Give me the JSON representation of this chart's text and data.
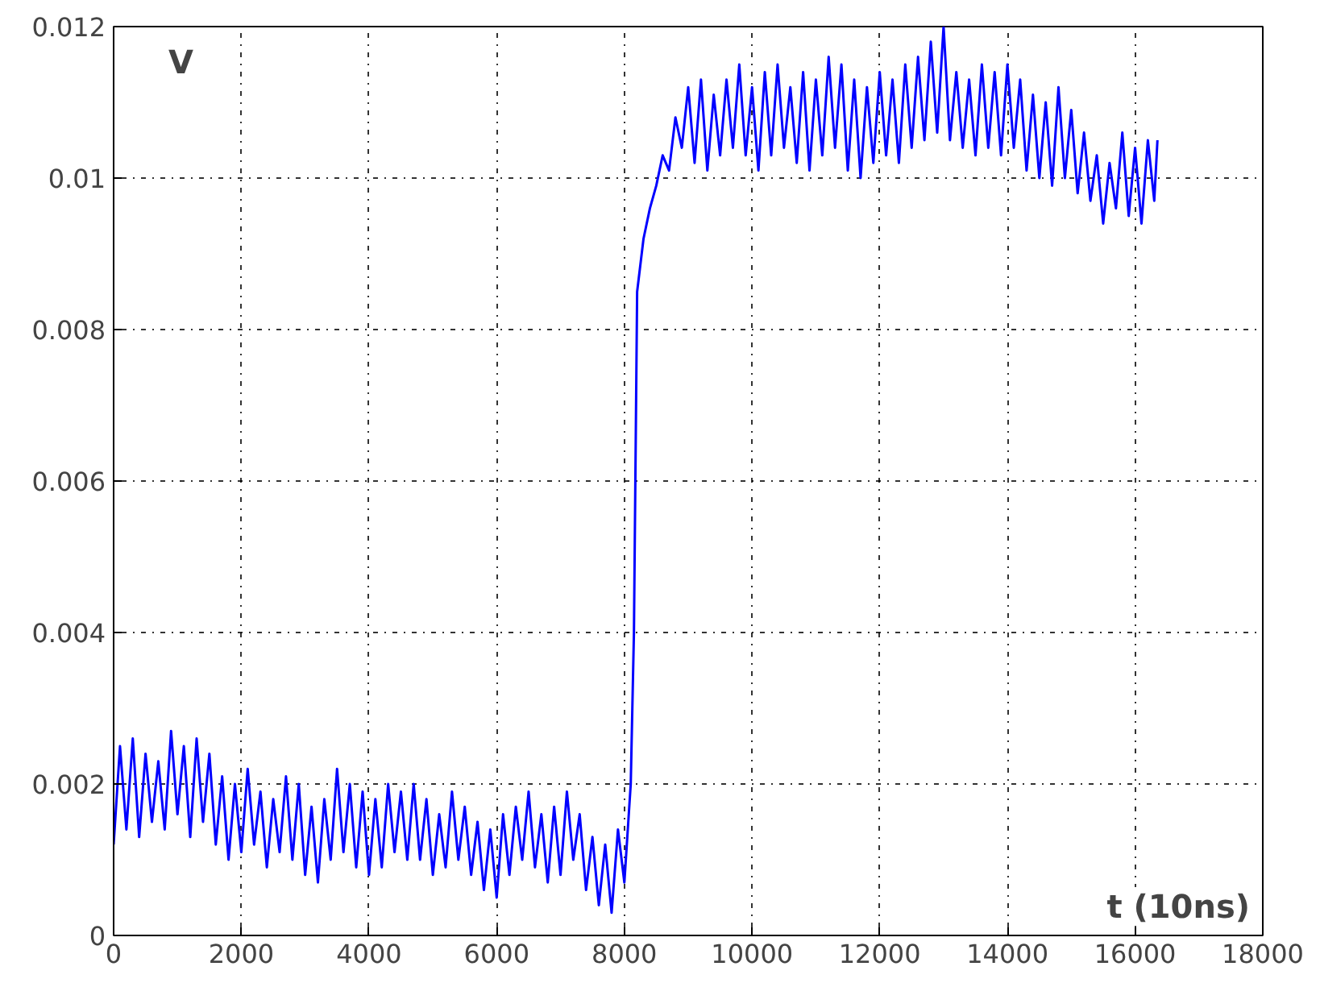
{
  "chart_data": {
    "type": "line",
    "xlabel": "t (10ns)",
    "ylabel": "V",
    "xlim": [
      0,
      18000
    ],
    "ylim": [
      0,
      0.012
    ],
    "xticks": [
      0,
      2000,
      4000,
      6000,
      8000,
      10000,
      12000,
      14000,
      16000,
      18000
    ],
    "yticks": [
      0,
      0.002,
      0.004,
      0.006,
      0.008,
      0.01,
      0.012
    ],
    "grid": true,
    "line_style": "solid",
    "series": [
      {
        "color": "#0000ff",
        "x": [
          0,
          100,
          200,
          300,
          400,
          500,
          600,
          700,
          800,
          900,
          1000,
          1100,
          1200,
          1300,
          1400,
          1500,
          1600,
          1700,
          1800,
          1900,
          2000,
          2100,
          2200,
          2300,
          2400,
          2500,
          2600,
          2700,
          2800,
          2900,
          3000,
          3100,
          3200,
          3300,
          3400,
          3500,
          3600,
          3700,
          3800,
          3900,
          4000,
          4100,
          4200,
          4300,
          4400,
          4500,
          4600,
          4700,
          4800,
          4900,
          5000,
          5100,
          5200,
          5300,
          5400,
          5500,
          5600,
          5700,
          5800,
          5900,
          6000,
          6100,
          6200,
          6300,
          6400,
          6500,
          6600,
          6700,
          6800,
          6900,
          7000,
          7100,
          7200,
          7300,
          7400,
          7500,
          7600,
          7700,
          7800,
          7900,
          8000,
          8100,
          8150,
          8200,
          8300,
          8400,
          8500,
          8600,
          8700,
          8800,
          8900,
          9000,
          9100,
          9200,
          9300,
          9400,
          9500,
          9600,
          9700,
          9800,
          9900,
          10000,
          10100,
          10200,
          10300,
          10400,
          10500,
          10600,
          10700,
          10800,
          10900,
          11000,
          11100,
          11200,
          11300,
          11400,
          11500,
          11600,
          11700,
          11800,
          11900,
          12000,
          12100,
          12200,
          12300,
          12400,
          12500,
          12600,
          12700,
          12800,
          12900,
          13000,
          13100,
          13200,
          13300,
          13400,
          13500,
          13600,
          13700,
          13800,
          13900,
          14000,
          14100,
          14200,
          14300,
          14400,
          14500,
          14600,
          14700,
          14800,
          14900,
          15000,
          15100,
          15200,
          15300,
          15400,
          15500,
          15600,
          15700,
          15800,
          15900,
          16000,
          16100,
          16200,
          16300,
          16350
        ],
        "values": [
          0.0012,
          0.0025,
          0.0014,
          0.0026,
          0.0013,
          0.0024,
          0.0015,
          0.0023,
          0.0014,
          0.0027,
          0.0016,
          0.0025,
          0.0013,
          0.0026,
          0.0015,
          0.0024,
          0.0012,
          0.0021,
          0.001,
          0.002,
          0.0011,
          0.0022,
          0.0012,
          0.0019,
          0.0009,
          0.0018,
          0.0011,
          0.0021,
          0.001,
          0.002,
          0.0008,
          0.0017,
          0.0007,
          0.0018,
          0.001,
          0.0022,
          0.0011,
          0.002,
          0.0009,
          0.0019,
          0.0008,
          0.0018,
          0.0009,
          0.002,
          0.0011,
          0.0019,
          0.001,
          0.002,
          0.001,
          0.0018,
          0.0008,
          0.0016,
          0.0009,
          0.0019,
          0.001,
          0.0017,
          0.0008,
          0.0015,
          0.0006,
          0.0014,
          0.0005,
          0.0016,
          0.0008,
          0.0017,
          0.001,
          0.0019,
          0.0009,
          0.0016,
          0.0007,
          0.0017,
          0.0008,
          0.0019,
          0.001,
          0.0016,
          0.0006,
          0.0013,
          0.0004,
          0.0012,
          0.0003,
          0.0014,
          0.0007,
          0.002,
          0.004,
          0.0085,
          0.0092,
          0.0096,
          0.0099,
          0.0103,
          0.0101,
          0.0108,
          0.0104,
          0.0112,
          0.0102,
          0.0113,
          0.0101,
          0.0111,
          0.0103,
          0.0113,
          0.0104,
          0.0115,
          0.0103,
          0.0112,
          0.0101,
          0.0114,
          0.0103,
          0.0115,
          0.0104,
          0.0112,
          0.0102,
          0.0114,
          0.0101,
          0.0113,
          0.0103,
          0.0116,
          0.0104,
          0.0115,
          0.0101,
          0.0113,
          0.01,
          0.0112,
          0.0102,
          0.0114,
          0.0103,
          0.0113,
          0.0102,
          0.0115,
          0.0104,
          0.0116,
          0.0105,
          0.0118,
          0.0106,
          0.012,
          0.0105,
          0.0114,
          0.0104,
          0.0113,
          0.0103,
          0.0115,
          0.0104,
          0.0114,
          0.0103,
          0.0115,
          0.0104,
          0.0113,
          0.0101,
          0.0111,
          0.01,
          0.011,
          0.0099,
          0.0112,
          0.01,
          0.0109,
          0.0098,
          0.0106,
          0.0097,
          0.0103,
          0.0094,
          0.0102,
          0.0096,
          0.0106,
          0.0095,
          0.0104,
          0.0094,
          0.0105,
          0.0097,
          0.0105
        ]
      }
    ]
  }
}
